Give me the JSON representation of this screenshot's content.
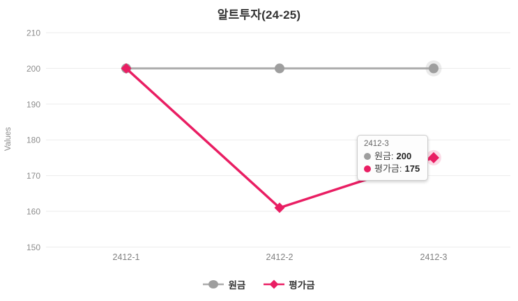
{
  "title": "알트투자(24-25)",
  "chart_data": {
    "type": "line",
    "title": "알트투자(24-25)",
    "xlabel": "",
    "ylabel": "Values",
    "categories": [
      "2412-1",
      "2412-2",
      "2412-3"
    ],
    "series": [
      {
        "name": "원금",
        "values": [
          200,
          200,
          200
        ],
        "color": "#9e9e9e",
        "line_color": "#ababab",
        "marker": "circle"
      },
      {
        "name": "평가금",
        "values": [
          200,
          161,
          175
        ],
        "color": "#e91e63",
        "line_color": "#e91e63",
        "marker": "diamond"
      }
    ],
    "ylim": [
      150,
      210
    ],
    "y_ticks": [
      210,
      200,
      190,
      180,
      170,
      160,
      150
    ],
    "grid": true,
    "legend_position": "bottom",
    "hovered_category_index": 2
  },
  "tooltip": {
    "header": "2412-3",
    "rows": [
      {
        "label": "원금:",
        "value": "200",
        "color": "#9e9e9e"
      },
      {
        "label": "평가금:",
        "value": "175",
        "color": "#e91e63"
      }
    ]
  },
  "legend": {
    "items": [
      {
        "label": "원금",
        "color": "#9e9e9e",
        "line_color": "#ababab",
        "marker": "circle"
      },
      {
        "label": "평가금",
        "color": "#e91e63",
        "line_color": "#e91e63",
        "marker": "diamond"
      }
    ]
  },
  "colors": {
    "grid_line": "#ebebeb",
    "axis_text": "#808080",
    "tick_text": "#8c8c8c"
  }
}
